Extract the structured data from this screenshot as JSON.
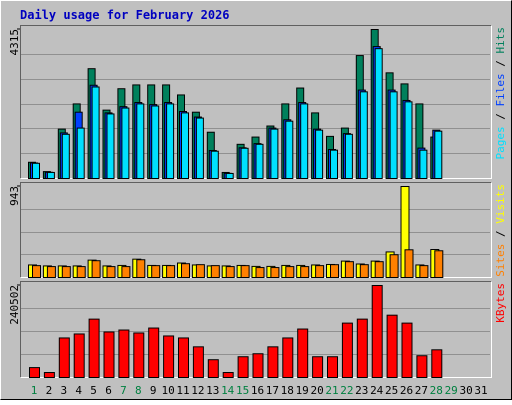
{
  "title": "Daily usage for February 2026",
  "legend_separator": "/",
  "categories": [
    "1",
    "2",
    "3",
    "4",
    "5",
    "6",
    "7",
    "8",
    "9",
    "10",
    "11",
    "12",
    "13",
    "14",
    "15",
    "16",
    "17",
    "18",
    "19",
    "20",
    "21",
    "22",
    "23",
    "24",
    "25",
    "26",
    "27",
    "28",
    "29",
    "30",
    "31"
  ],
  "category_colors": [
    "#008040",
    "#000000",
    "#000000",
    "#000000",
    "#000000",
    "#000000",
    "#008040",
    "#008040",
    "#000000",
    "#000000",
    "#000000",
    "#000000",
    "#000000",
    "#008040",
    "#008040",
    "#000000",
    "#000000",
    "#000000",
    "#000000",
    "#000000",
    "#008040",
    "#008040",
    "#000000",
    "#000000",
    "#000000",
    "#000000",
    "#000000",
    "#008040",
    "#008040",
    "#000000",
    "#000000"
  ],
  "chart_data": [
    {
      "type": "bar",
      "ylim": [
        0,
        4315
      ],
      "yticks": [
        4315
      ],
      "series": [
        {
          "name": "Hits",
          "color": "#00805c",
          "values": [
            470,
            200,
            1430,
            2160,
            3180,
            1980,
            2600,
            2710,
            2710,
            2710,
            2420,
            1920,
            1340,
            175,
            990,
            1200,
            1520,
            2160,
            2620,
            1900,
            1220,
            1460,
            3560,
            4315,
            3060,
            2740,
            2160,
            1200,
            null,
            null,
            null
          ]
        },
        {
          "name": "Files",
          "color": "#0040ff",
          "values": [
            450,
            180,
            1320,
            1920,
            2700,
            1900,
            2080,
            2200,
            2140,
            2200,
            1940,
            1780,
            810,
            150,
            890,
            1010,
            1460,
            1700,
            2200,
            1430,
            840,
            1300,
            2560,
            3820,
            2560,
            2260,
            880,
            1400,
            null,
            null,
            null
          ]
        },
        {
          "name": "Pages",
          "color": "#00e0ff",
          "values": [
            440,
            175,
            1280,
            1460,
            2650,
            1870,
            2040,
            2160,
            2100,
            2160,
            1900,
            1750,
            790,
            146,
            875,
            990,
            1430,
            1660,
            2160,
            1400,
            820,
            1280,
            2510,
            3760,
            2510,
            2220,
            820,
            1370,
            null,
            null,
            null
          ]
        }
      ]
    },
    {
      "type": "bar",
      "ylim": [
        0,
        943
      ],
      "yticks": [
        943
      ],
      "series": [
        {
          "name": "Visits",
          "color": "#ffff00",
          "values": [
            130,
            120,
            120,
            120,
            180,
            120,
            125,
            190,
            125,
            125,
            150,
            130,
            120,
            120,
            125,
            115,
            115,
            125,
            125,
            130,
            135,
            170,
            140,
            170,
            265,
            943,
            130,
            290,
            null,
            null,
            null
          ]
        },
        {
          "name": "Sites",
          "color": "#ff8000",
          "values": [
            123,
            113,
            113,
            113,
            174,
            113,
            113,
            184,
            123,
            123,
            143,
            133,
            123,
            113,
            123,
            103,
            103,
            113,
            113,
            123,
            133,
            164,
            133,
            164,
            236,
            287,
            123,
            277,
            null,
            null,
            null
          ]
        }
      ]
    },
    {
      "type": "bar",
      "ylim": [
        0,
        240502
      ],
      "yticks": [
        240502
      ],
      "series": [
        {
          "name": "KBytes",
          "color": "#ff0000",
          "values": [
            25900,
            13000,
            103400,
            113800,
            152600,
            119000,
            124100,
            116400,
            129300,
            108600,
            103400,
            80200,
            46500,
            13000,
            54300,
            62100,
            80200,
            103400,
            126700,
            54300,
            54300,
            142200,
            152600,
            240502,
            162900,
            142200,
            56900,
            72400,
            null,
            null,
            null
          ]
        }
      ]
    }
  ]
}
